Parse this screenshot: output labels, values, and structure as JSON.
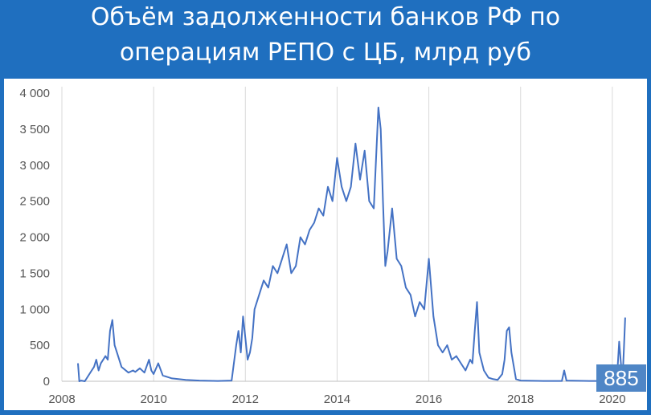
{
  "chart_data": {
    "type": "line",
    "title_lines": [
      "Объём задолженности банков РФ по",
      "операциям РЕПО с ЦБ, млрд руб"
    ],
    "xlabel": "",
    "ylabel": "",
    "xlim": [
      2008,
      2020.3
    ],
    "ylim": [
      0,
      4000
    ],
    "x_ticks": [
      2008,
      2010,
      2012,
      2014,
      2016,
      2018,
      2020
    ],
    "y_ticks": [
      0,
      500,
      1000,
      1500,
      2000,
      2500,
      3000,
      3500,
      4000
    ],
    "x_tick_labels": [
      "2008",
      "2010",
      "2012",
      "2014",
      "2016",
      "2018",
      "2020"
    ],
    "y_tick_labels": [
      "0",
      "500",
      "1 000",
      "1 500",
      "2 000",
      "2 500",
      "3 000",
      "3 500",
      "4 000"
    ],
    "grid": "vertical",
    "line_color": "#4472c4",
    "annotation": {
      "label": "885",
      "value": 885
    },
    "series": [
      {
        "x": [
          2008.35,
          2008.38,
          2008.42,
          2008.5,
          2008.65,
          2008.7,
          2008.75,
          2008.8,
          2008.85,
          2008.9,
          2008.95,
          2009.0,
          2009.05,
          2009.1,
          2009.15,
          2009.2,
          2009.3,
          2009.45,
          2009.55,
          2009.6,
          2009.7,
          2009.8,
          2009.9,
          2009.95,
          2010.0,
          2010.1,
          2010.2,
          2010.4,
          2010.7,
          2011.0,
          2011.4,
          2011.7,
          2011.8,
          2011.85,
          2011.9,
          2011.95,
          2012.0,
          2012.05,
          2012.1,
          2012.15,
          2012.2,
          2012.3,
          2012.4,
          2012.5,
          2012.6,
          2012.7,
          2012.8,
          2012.9,
          2013.0,
          2013.1,
          2013.2,
          2013.3,
          2013.4,
          2013.5,
          2013.6,
          2013.7,
          2013.8,
          2013.9,
          2014.0,
          2014.1,
          2014.2,
          2014.3,
          2014.4,
          2014.5,
          2014.6,
          2014.7,
          2014.8,
          2014.9,
          2014.95,
          2015.0,
          2015.05,
          2015.1,
          2015.2,
          2015.3,
          2015.4,
          2015.5,
          2015.6,
          2015.7,
          2015.8,
          2015.9,
          2016.0,
          2016.1,
          2016.2,
          2016.3,
          2016.4,
          2016.5,
          2016.6,
          2016.7,
          2016.8,
          2016.9,
          2016.95,
          2017.0,
          2017.05,
          2017.1,
          2017.2,
          2017.3,
          2017.4,
          2017.5,
          2017.6,
          2017.65,
          2017.7,
          2017.75,
          2017.8,
          2017.9,
          2018.0,
          2018.5,
          2018.9,
          2018.95,
          2019.0,
          2019.5,
          2020.0,
          2020.1,
          2020.15,
          2020.18,
          2020.22,
          2020.25,
          2020.28
        ],
        "y": [
          250,
          0,
          10,
          0,
          150,
          200,
          300,
          150,
          250,
          300,
          350,
          300,
          700,
          850,
          500,
          400,
          200,
          120,
          150,
          130,
          180,
          120,
          300,
          150,
          100,
          250,
          80,
          40,
          20,
          10,
          5,
          10,
          500,
          700,
          400,
          900,
          600,
          300,
          400,
          600,
          1000,
          1200,
          1400,
          1300,
          1600,
          1500,
          1700,
          1900,
          1500,
          1600,
          2000,
          1900,
          2100,
          2200,
          2400,
          2300,
          2700,
          2500,
          3100,
          2700,
          2500,
          2700,
          3300,
          2800,
          3200,
          2500,
          2400,
          3800,
          3500,
          2500,
          1600,
          1800,
          2400,
          1700,
          1600,
          1300,
          1200,
          900,
          1100,
          1000,
          1700,
          900,
          500,
          400,
          500,
          300,
          350,
          250,
          150,
          300,
          250,
          700,
          1100,
          400,
          150,
          50,
          30,
          20,
          100,
          300,
          700,
          750,
          400,
          30,
          10,
          5,
          5,
          150,
          10,
          5,
          5,
          30,
          550,
          300,
          0,
          400,
          885
        ]
      }
    ]
  }
}
